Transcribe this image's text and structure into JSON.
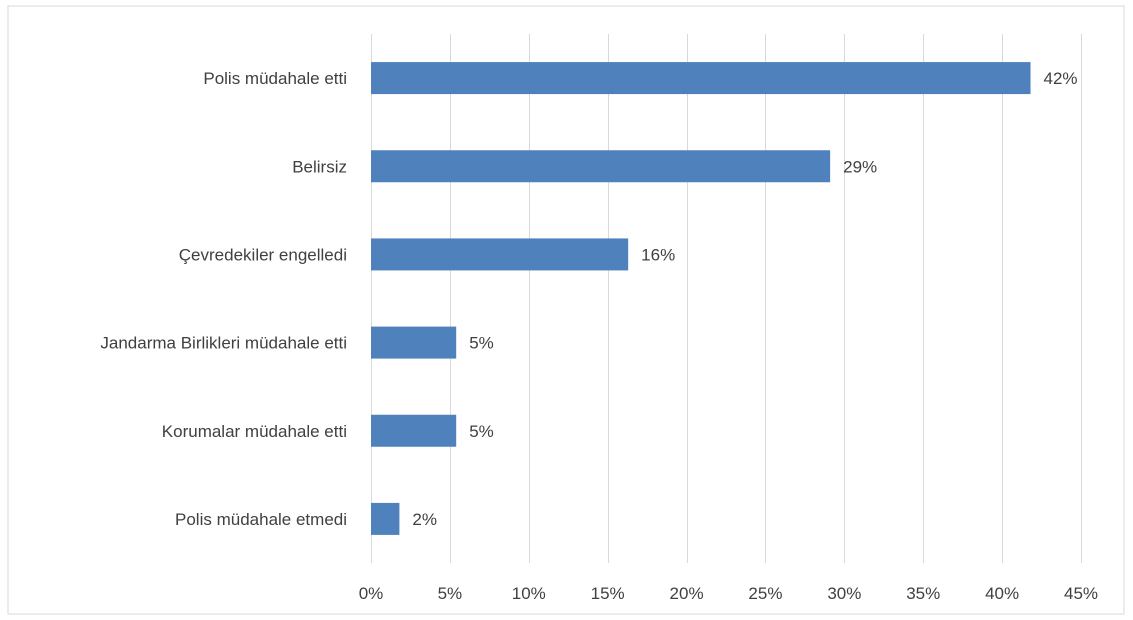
{
  "chart_data": {
    "type": "bar",
    "orientation": "horizontal",
    "title": "",
    "xlabel": "",
    "ylabel": "",
    "categories": [
      "Polis müdahale etti",
      "Belirsiz",
      "Çevredekiler engelledi",
      "Jandarma Birlikleri müdahale etti",
      "Korumalar müdahale etti",
      "Polis müdahale etmedi"
    ],
    "values": [
      41.8,
      29.1,
      16.3,
      5.4,
      5.4,
      1.8
    ],
    "data_labels": [
      "42%",
      "29%",
      "16%",
      "5%",
      "5%",
      "2%"
    ],
    "xlim": [
      0,
      45
    ],
    "x_ticks": [
      0,
      5,
      10,
      15,
      20,
      25,
      30,
      35,
      40,
      45
    ],
    "x_tick_labels": [
      "0%",
      "5%",
      "10%",
      "15%",
      "20%",
      "25%",
      "30%",
      "35%",
      "40%",
      "45%"
    ],
    "grid": "vertical",
    "legend": "none",
    "colors": {
      "bar": "#4f81bd",
      "grid": "#d9d9d9",
      "text": "#404040",
      "frame": "#d9d9d9"
    }
  }
}
